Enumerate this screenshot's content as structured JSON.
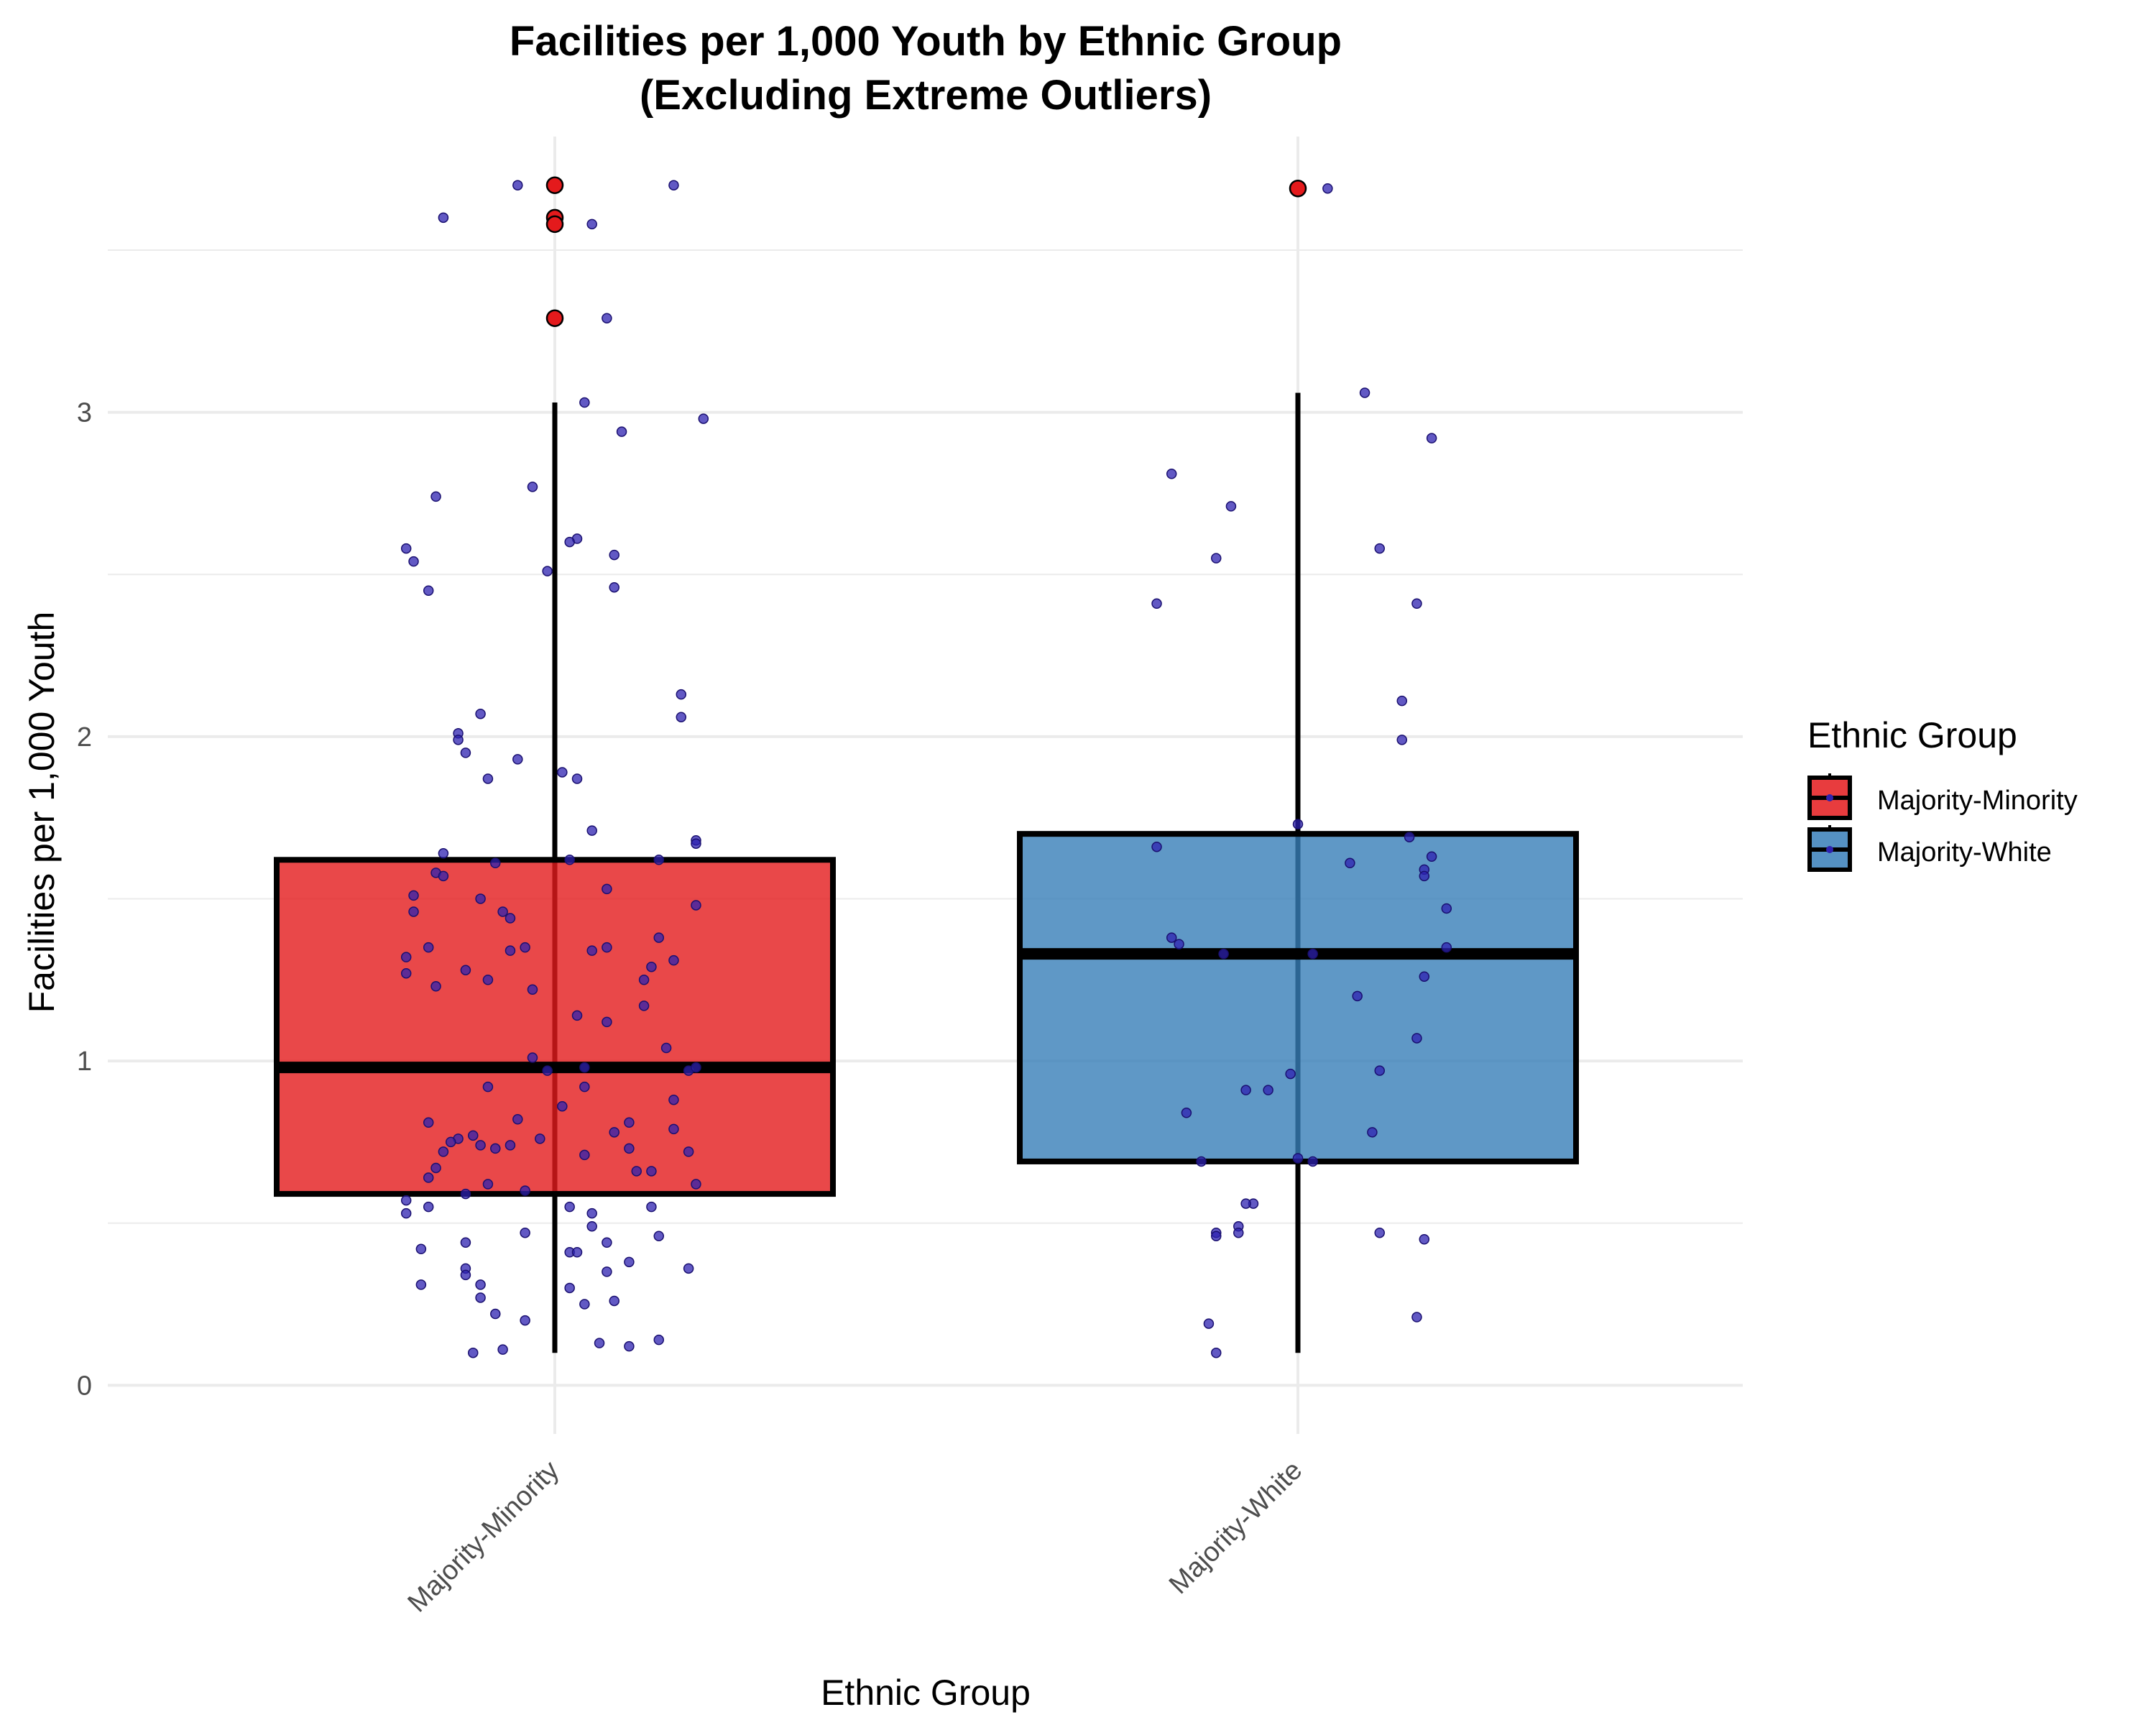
{
  "colors": {
    "majority_minority": "#E41A1C",
    "majority_white": "#377EB8",
    "jitter_points": "#2E22B0",
    "outlier": "#E41A1C",
    "grid": "#EBEBEB"
  },
  "chart_data": {
    "type": "box",
    "title_line1": "Facilities per 1,000 Youth by Ethnic Group",
    "title_line2": "(Excluding Extreme Outliers)",
    "xlabel": "Ethnic Group",
    "ylabel": "Facilities per 1,000 Youth",
    "ylim": [
      -0.15,
      3.85
    ],
    "yticks": [
      0,
      1,
      2,
      3
    ],
    "grid": true,
    "legend": {
      "title": "Ethnic Group",
      "position": "right",
      "entries": [
        "Majority-Minority",
        "Majority-White"
      ]
    },
    "categories": [
      "Majority-Minority",
      "Majority-White"
    ],
    "boxes": [
      {
        "name": "Majority-Minority",
        "whisker_low": 0.1,
        "q1": 0.59,
        "median": 0.98,
        "q3": 1.62,
        "whisker_high": 3.03,
        "outliers": [
          3.7,
          3.6,
          3.58,
          3.29
        ]
      },
      {
        "name": "Majority-White",
        "whisker_low": 0.1,
        "q1": 0.69,
        "median": 1.33,
        "q3": 1.7,
        "whisker_high": 3.06,
        "outliers": [
          3.69
        ]
      }
    ],
    "points": [
      [
        [
          -0.05,
          3.7
        ],
        [
          0.16,
          3.7
        ],
        [
          -0.15,
          3.6
        ],
        [
          0.05,
          3.58
        ],
        [
          0.07,
          3.29
        ],
        [
          0.04,
          3.03
        ],
        [
          0.2,
          2.98
        ],
        [
          0.09,
          2.94
        ],
        [
          -0.03,
          2.77
        ],
        [
          -0.16,
          2.74
        ],
        [
          0.03,
          2.61
        ],
        [
          0.02,
          2.6
        ],
        [
          -0.2,
          2.58
        ],
        [
          -0.19,
          2.54
        ],
        [
          0.08,
          2.56
        ],
        [
          -0.01,
          2.51
        ],
        [
          0.08,
          2.46
        ],
        [
          -0.17,
          2.45
        ],
        [
          0.17,
          2.13
        ],
        [
          0.17,
          2.06
        ],
        [
          -0.1,
          2.07
        ],
        [
          -0.13,
          2.01
        ],
        [
          -0.13,
          1.99
        ],
        [
          -0.12,
          1.95
        ],
        [
          -0.05,
          1.93
        ],
        [
          0.01,
          1.89
        ],
        [
          -0.09,
          1.87
        ],
        [
          0.03,
          1.87
        ],
        [
          0.05,
          1.71
        ],
        [
          0.19,
          1.68
        ],
        [
          0.19,
          1.67
        ],
        [
          -0.15,
          1.64
        ],
        [
          0.14,
          1.62
        ],
        [
          0.02,
          1.62
        ],
        [
          -0.08,
          1.61
        ],
        [
          -0.16,
          1.58
        ],
        [
          -0.15,
          1.57
        ],
        [
          0.07,
          1.53
        ],
        [
          -0.19,
          1.51
        ],
        [
          -0.1,
          1.5
        ],
        [
          0.19,
          1.48
        ],
        [
          -0.19,
          1.46
        ],
        [
          -0.07,
          1.46
        ],
        [
          -0.06,
          1.44
        ],
        [
          0.14,
          1.38
        ],
        [
          -0.04,
          1.35
        ],
        [
          -0.17,
          1.35
        ],
        [
          0.05,
          1.34
        ],
        [
          0.07,
          1.35
        ],
        [
          -0.06,
          1.34
        ],
        [
          -0.2,
          1.32
        ],
        [
          0.16,
          1.31
        ],
        [
          0.13,
          1.29
        ],
        [
          -0.12,
          1.28
        ],
        [
          -0.2,
          1.27
        ],
        [
          -0.09,
          1.25
        ],
        [
          0.12,
          1.25
        ],
        [
          -0.16,
          1.23
        ],
        [
          -0.03,
          1.22
        ],
        [
          0.12,
          1.17
        ],
        [
          0.03,
          1.14
        ],
        [
          0.07,
          1.12
        ],
        [
          0.15,
          1.04
        ],
        [
          -0.03,
          1.01
        ],
        [
          0.18,
          0.97
        ],
        [
          0.04,
          0.98
        ],
        [
          0.19,
          0.98
        ],
        [
          -0.01,
          0.97
        ],
        [
          -0.09,
          0.92
        ],
        [
          0.04,
          0.92
        ],
        [
          0.16,
          0.88
        ],
        [
          0.01,
          0.86
        ],
        [
          -0.17,
          0.81
        ],
        [
          -0.05,
          0.82
        ],
        [
          0.1,
          0.81
        ],
        [
          0.08,
          0.78
        ],
        [
          0.16,
          0.79
        ],
        [
          -0.13,
          0.76
        ],
        [
          -0.11,
          0.77
        ],
        [
          -0.02,
          0.76
        ],
        [
          -0.14,
          0.75
        ],
        [
          -0.06,
          0.74
        ],
        [
          -0.1,
          0.74
        ],
        [
          -0.15,
          0.72
        ],
        [
          -0.08,
          0.73
        ],
        [
          0.1,
          0.73
        ],
        [
          0.04,
          0.71
        ],
        [
          0.18,
          0.72
        ],
        [
          -0.16,
          0.67
        ],
        [
          0.11,
          0.66
        ],
        [
          0.13,
          0.66
        ],
        [
          -0.17,
          0.64
        ],
        [
          -0.09,
          0.62
        ],
        [
          0.19,
          0.62
        ],
        [
          -0.04,
          0.6
        ],
        [
          -0.12,
          0.59
        ],
        [
          -0.2,
          0.57
        ],
        [
          -0.17,
          0.55
        ],
        [
          0.02,
          0.55
        ],
        [
          0.13,
          0.55
        ],
        [
          -0.2,
          0.53
        ],
        [
          0.05,
          0.53
        ],
        [
          0.05,
          0.49
        ],
        [
          -0.04,
          0.47
        ],
        [
          0.14,
          0.46
        ],
        [
          -0.12,
          0.44
        ],
        [
          0.07,
          0.44
        ],
        [
          -0.18,
          0.42
        ],
        [
          0.02,
          0.41
        ],
        [
          0.03,
          0.41
        ],
        [
          0.1,
          0.38
        ],
        [
          -0.12,
          0.36
        ],
        [
          0.18,
          0.36
        ],
        [
          -0.12,
          0.34
        ],
        [
          0.07,
          0.35
        ],
        [
          -0.18,
          0.31
        ],
        [
          -0.1,
          0.31
        ],
        [
          0.02,
          0.3
        ],
        [
          -0.1,
          0.27
        ],
        [
          0.08,
          0.26
        ],
        [
          0.04,
          0.25
        ],
        [
          -0.08,
          0.22
        ],
        [
          -0.04,
          0.2
        ],
        [
          0.14,
          0.14
        ],
        [
          0.06,
          0.13
        ],
        [
          0.1,
          0.12
        ],
        [
          -0.07,
          0.11
        ],
        [
          -0.11,
          0.1
        ]
      ],
      [
        [
          0.04,
          3.69
        ],
        [
          0.09,
          3.06
        ],
        [
          0.18,
          2.92
        ],
        [
          -0.17,
          2.81
        ],
        [
          -0.09,
          2.71
        ],
        [
          -0.11,
          2.55
        ],
        [
          0.11,
          2.58
        ],
        [
          -0.19,
          2.41
        ],
        [
          0.16,
          2.41
        ],
        [
          0.14,
          2.11
        ],
        [
          0.14,
          1.99
        ],
        [
          0.0,
          1.73
        ],
        [
          0.15,
          1.69
        ],
        [
          -0.19,
          1.66
        ],
        [
          0.18,
          1.63
        ],
        [
          0.07,
          1.61
        ],
        [
          0.17,
          1.59
        ],
        [
          0.17,
          1.57
        ],
        [
          0.2,
          1.47
        ],
        [
          -0.17,
          1.38
        ],
        [
          -0.16,
          1.36
        ],
        [
          0.2,
          1.35
        ],
        [
          -0.1,
          1.33
        ],
        [
          0.02,
          1.33
        ],
        [
          0.17,
          1.26
        ],
        [
          0.08,
          1.2
        ],
        [
          0.16,
          1.07
        ],
        [
          0.11,
          0.97
        ],
        [
          -0.01,
          0.96
        ],
        [
          -0.07,
          0.91
        ],
        [
          -0.04,
          0.91
        ],
        [
          -0.15,
          0.84
        ],
        [
          0.1,
          0.78
        ],
        [
          0.0,
          0.7
        ],
        [
          -0.13,
          0.69
        ],
        [
          0.02,
          0.69
        ],
        [
          -0.06,
          0.56
        ],
        [
          -0.07,
          0.56
        ],
        [
          -0.08,
          0.49
        ],
        [
          -0.11,
          0.47
        ],
        [
          -0.11,
          0.46
        ],
        [
          -0.08,
          0.47
        ],
        [
          0.11,
          0.47
        ],
        [
          0.17,
          0.45
        ],
        [
          0.16,
          0.21
        ],
        [
          -0.12,
          0.19
        ],
        [
          -0.11,
          0.1
        ]
      ]
    ]
  }
}
